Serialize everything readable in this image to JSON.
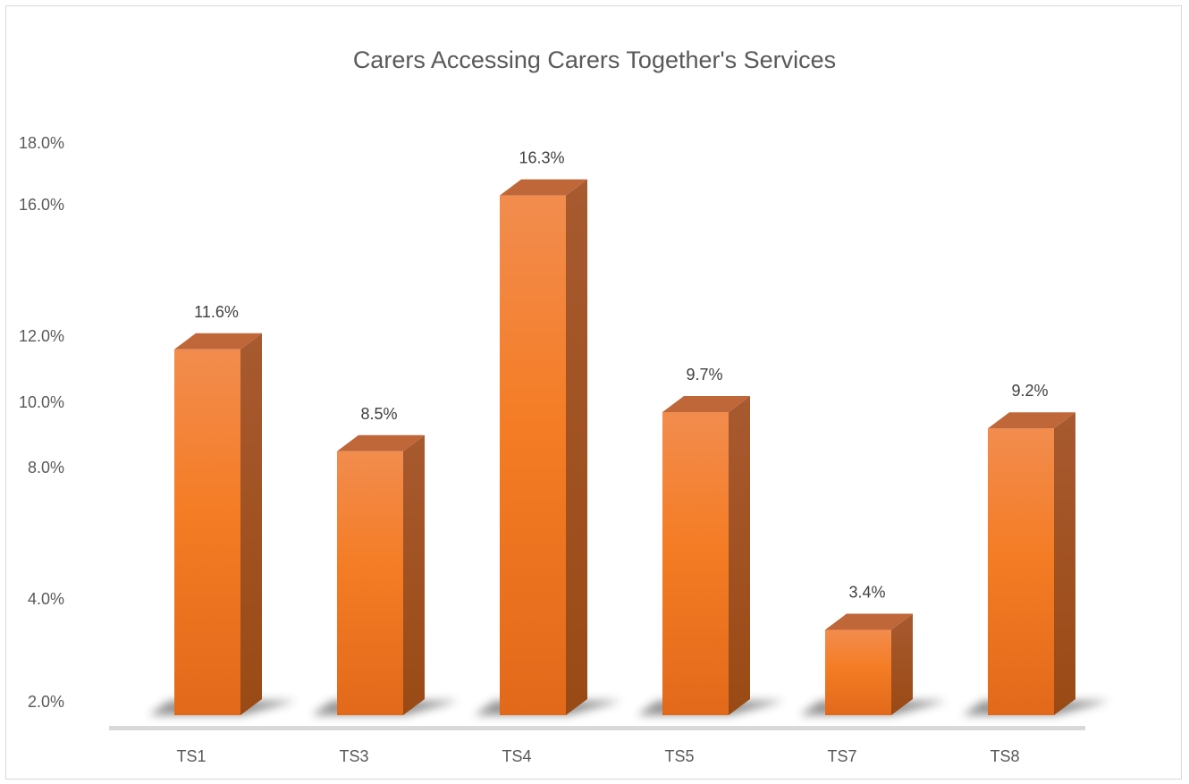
{
  "chart_data": {
    "type": "bar",
    "title": "Carers Accessing Carers Together's Services",
    "xlabel": "",
    "ylabel": "",
    "categories": [
      "TS1",
      "TS3",
      "TS4",
      "TS5",
      "TS7",
      "TS8"
    ],
    "values": [
      11.6,
      8.5,
      16.3,
      9.7,
      3.4,
      9.2
    ],
    "data_labels": [
      "11.6%",
      "8.5%",
      "16.3%",
      "9.7%",
      "3.4%",
      "9.2%"
    ],
    "yticks": [
      {
        "value": 2,
        "label": "2.0%"
      },
      {
        "value": 4,
        "label": "4.0%"
      },
      {
        "value": 8,
        "label": "8.0%"
      },
      {
        "value": 10,
        "label": "10.0%"
      },
      {
        "value": 12,
        "label": "12.0%"
      },
      {
        "value": 16,
        "label": "16.0%"
      },
      {
        "value": 18,
        "label": "18.0%"
      }
    ],
    "ylim": [
      0,
      18
    ],
    "grid": false,
    "legend": "none",
    "style": "3d-column",
    "colors": {
      "bar": "#F07B26",
      "bar_light": "#F1924F",
      "top": "#C0673A",
      "side": "#A95A2B",
      "axis": "#D9D9D9"
    }
  }
}
